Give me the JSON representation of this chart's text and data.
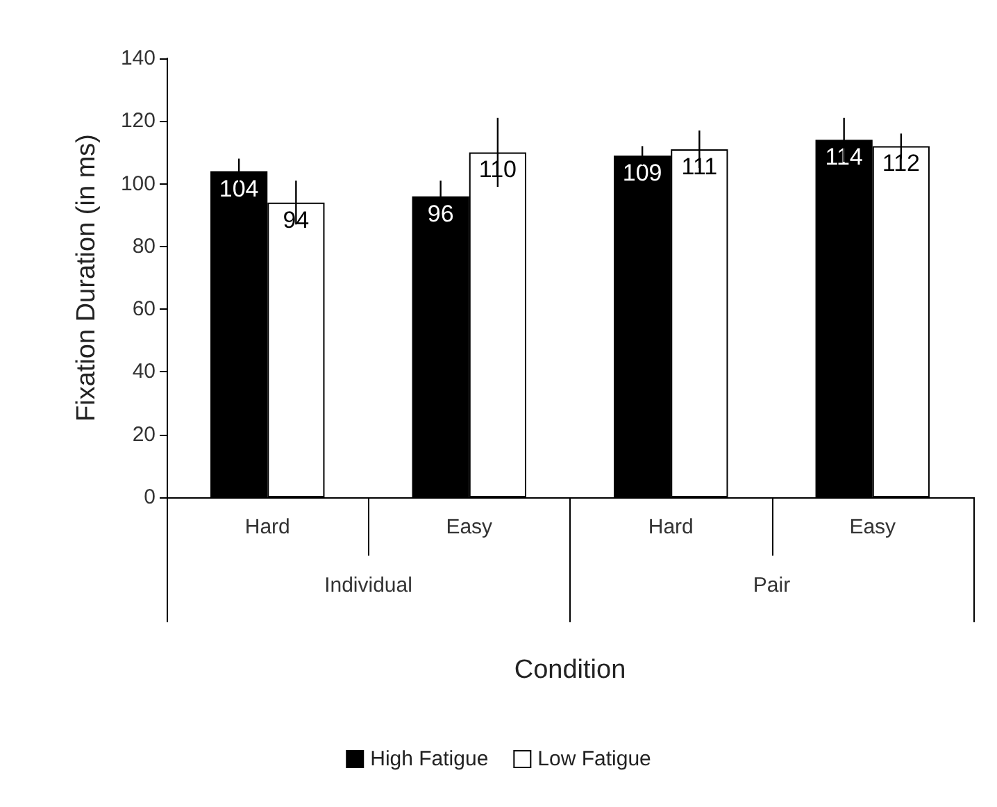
{
  "chart_data": {
    "type": "bar",
    "xlabel": "Condition",
    "ylabel": "Fixation Duration (in ms)",
    "categories": [
      "Hard",
      "Easy",
      "Hard",
      "Easy"
    ],
    "annotations": [
      "Individual",
      "Pair"
    ],
    "series": [
      {
        "name": "High Fatigue",
        "color": "#000000",
        "values": [
          104,
          96,
          109,
          114
        ],
        "errors": [
          4,
          5,
          3,
          7
        ]
      },
      {
        "name": "Low Fatigue",
        "color": "#ffffff",
        "values": [
          94,
          110,
          111,
          112
        ],
        "errors": [
          7,
          11,
          6,
          4
        ]
      }
    ],
    "ylim": [
      0,
      140
    ],
    "yticks": [
      0,
      20,
      40,
      60,
      80,
      100,
      120,
      140
    ],
    "data_labels": true,
    "grid": false,
    "legend": "bottom"
  }
}
